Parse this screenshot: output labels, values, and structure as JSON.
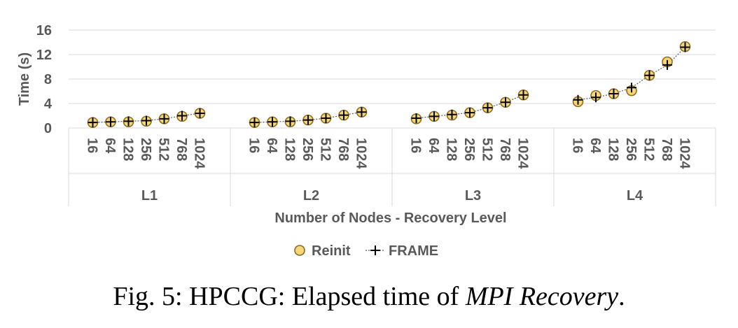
{
  "chart_data": {
    "type": "scatter",
    "title": "",
    "xlabel": "Number of Nodes - Recovery Level",
    "ylabel": "Time (s)",
    "ylim": [
      0,
      16
    ],
    "yticks": [
      "0",
      "4",
      "8",
      "12",
      "16"
    ],
    "groups": [
      "L1",
      "L2",
      "L3",
      "L4"
    ],
    "categories": [
      "16",
      "64",
      "128",
      "256",
      "512",
      "768",
      "1024"
    ],
    "grid": true,
    "legend_position": "bottom",
    "series": [
      {
        "name": "Reinit",
        "marker": "circle",
        "color": "#f5d67a",
        "stroke": "#8a6d1e",
        "values": [
          [
            0.9,
            1.0,
            1.0,
            1.1,
            1.5,
            1.9,
            2.4
          ],
          [
            0.9,
            1.0,
            1.0,
            1.3,
            1.6,
            2.1,
            2.6
          ],
          [
            1.5,
            1.9,
            2.1,
            2.5,
            3.3,
            4.2,
            5.4
          ],
          [
            4.3,
            5.3,
            5.6,
            6.1,
            8.6,
            10.8,
            13.3
          ]
        ]
      },
      {
        "name": "FRAME",
        "marker": "plus",
        "color": "#000000",
        "values": [
          [
            0.9,
            1.0,
            1.1,
            1.2,
            1.5,
            2.0,
            2.4
          ],
          [
            0.9,
            1.0,
            1.1,
            1.3,
            1.6,
            2.1,
            2.6
          ],
          [
            1.6,
            1.9,
            2.2,
            2.5,
            3.3,
            4.2,
            5.4
          ],
          [
            4.6,
            5.0,
            5.6,
            6.6,
            8.6,
            10.3,
            13.2
          ]
        ]
      }
    ]
  },
  "caption": {
    "prefix": "Fig. 5: HPCCG: Elapsed time of ",
    "emphasis": "MPI Recovery",
    "suffix": "."
  }
}
